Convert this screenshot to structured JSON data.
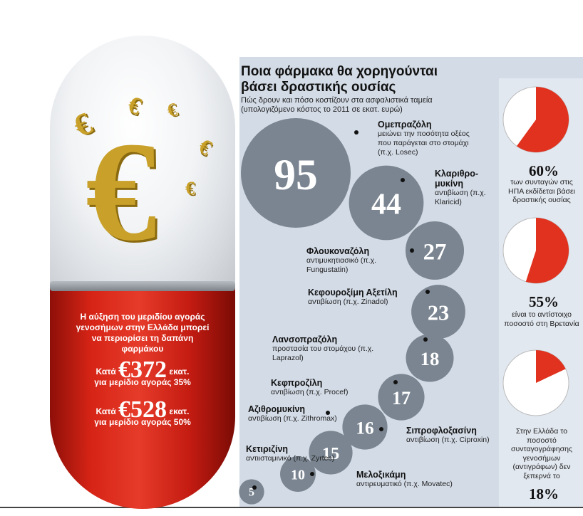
{
  "title": "Ποια φάρμακα θα χορηγούνται βάσει δραστικής ουσίας",
  "subtitle": "Πώς δρουν και πόσο κοστίζουν στα ασφαλιστικά ταμεία (υπολογιζόμενο κόστος το 2011 σε εκατ. ευρώ)",
  "pill": {
    "intro": "Η αύξηση του μεριδίου αγοράς γενοσήμων στην Ελλάδα μπορεί να περιορίσει τη δαπάνη φαρμάκου",
    "row1_prefix": "Κατά",
    "row1_amount": "€372",
    "row1_suffix": "εκατ.",
    "row1_note": "για μερίδιο αγοράς 35%",
    "row2_prefix": "Κατά",
    "row2_amount": "€528",
    "row2_suffix": "εκατ.",
    "row2_note": "για μερίδιο αγοράς 50%"
  },
  "chart_data": [
    {
      "type": "bubble",
      "title": "Ποια φάρμακα θα χορηγούνται βάσει δραστικής ουσίας",
      "subtitle": "Πώς δρουν και πόσο κοστίζουν στα ασφαλιστικά ταμεία (υπολογιζόμενο κόστος το 2011 σε εκατ. ευρώ)",
      "bubble_color": "#7a8591",
      "items": [
        {
          "name": "Ομεπραζόλη",
          "value": 95,
          "desc": "μειώνει την ποσότητα οξέος που παράγεται στο στομάχι (π.χ. Losec)"
        },
        {
          "name": "Κλαριθρο-μυκίνη",
          "value": 44,
          "desc": "αντιβίωση (π.χ. Klaricid)"
        },
        {
          "name": "Φλουκοναζόλη",
          "value": 27,
          "desc": "αντιμυκητιασικό (π.χ. Fungustatin)"
        },
        {
          "name": "Κεφουροξίμη Αξετίλη",
          "value": 23,
          "desc": "αντιβίωση (π.χ. Zinadol)"
        },
        {
          "name": "Λανσοπραζόλη",
          "value": 18,
          "desc": "προστασία του στομάχου (π.χ. Laprazol)"
        },
        {
          "name": "Κεφπροζίλη",
          "value": 17,
          "desc": "αντιβίωση (π.χ. Procef)"
        },
        {
          "name": "Σιπροφλοξασίνη",
          "value": 16,
          "desc": "αντιβίωση (π.χ. Ciproxin)"
        },
        {
          "name": "Αζιθρομυκίνη",
          "value": 15,
          "desc": "αντιβίωση (π.χ. Zithromax)"
        },
        {
          "name": "Μελοξικάμη",
          "value": 10,
          "desc": "αντιρευματικό (π.χ. Movatec)"
        },
        {
          "name": "Κετιριζίνη",
          "value": 5,
          "desc": "αντιισταμινικό (π.χ. Zyrtec)"
        }
      ]
    },
    {
      "type": "pie",
      "percent": 60,
      "percent_label": "60%",
      "note": "των συνταγών στις ΗΠΑ εκδίδεται βάσει δραστικής ουσίας",
      "colors": {
        "slice": "#e0321f",
        "rest": "#ffffff"
      }
    },
    {
      "type": "pie",
      "percent": 55,
      "percent_label": "55%",
      "note": "είναι το αντίστοιχο ποσοστό στη Βρετανία",
      "colors": {
        "slice": "#e0321f",
        "rest": "#ffffff"
      }
    },
    {
      "type": "pie",
      "percent": 18,
      "percent_label": "18%",
      "note": "Στην Ελλάδα το ποσοστό συνταγογράφησης γενοσήμων (αντιγράφων) δεν ξεπερνά το",
      "colors": {
        "slice": "#e0321f",
        "rest": "#ffffff"
      }
    }
  ]
}
